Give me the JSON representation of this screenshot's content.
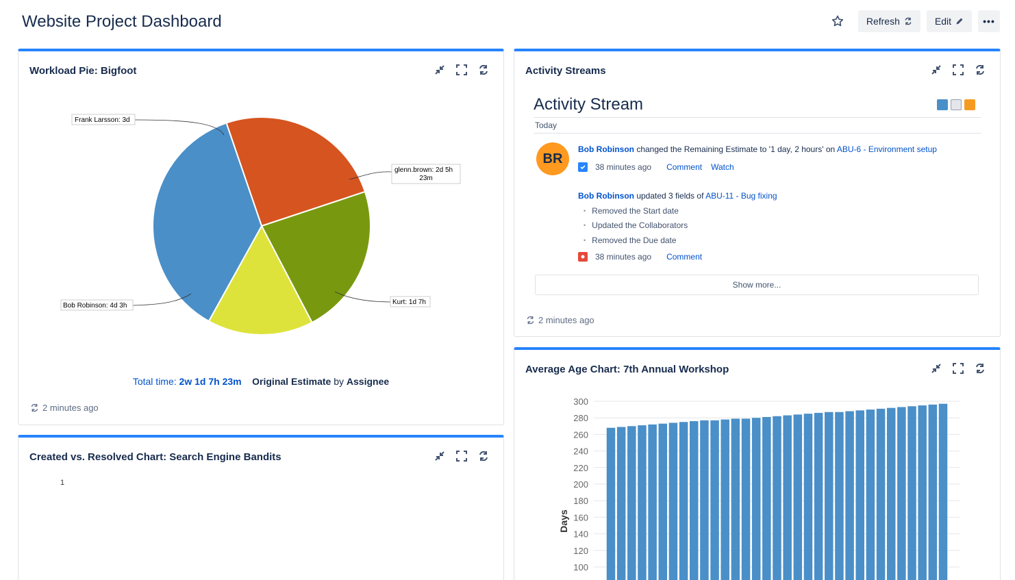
{
  "page": {
    "title": "Website Project Dashboard",
    "refresh_label": "Refresh",
    "edit_label": "Edit",
    "more_label": "•••"
  },
  "workload_pie": {
    "title": "Workload Pie: Bigfoot",
    "caption": {
      "total_prefix": "Total time:",
      "total_value": "2w 1d 7h 23m",
      "estimate": "Original Estimate",
      "by": "by",
      "assignee": "Assignee"
    },
    "labels": {
      "frank": "Frank Larsson: 3d",
      "glenn_line1": "glenn.brown: 2d 5h",
      "glenn_line2": "23m",
      "kurt": "Kurt: 1d 7h",
      "bob": "Bob Robinson: 4d 3h"
    },
    "refreshed": "2 minutes ago"
  },
  "activity_streams": {
    "title": "Activity Streams",
    "heading": "Activity Stream",
    "day": "Today",
    "avatar_initials": "BR",
    "entry1": {
      "user": "Bob Robinson",
      "text": "changed the Remaining Estimate to '1 day, 2 hours' on",
      "issue": "ABU-6 - Environment setup",
      "time": "38 minutes ago",
      "action1": "Comment",
      "action2": "Watch"
    },
    "entry2": {
      "user": "Bob Robinson",
      "text": "updated 3 fields of",
      "issue": "ABU-11 - Bug fixing",
      "changes": [
        "Removed the Start date",
        "Updated the Collaborators",
        "Removed the Due date"
      ],
      "time": "38 minutes ago",
      "action1": "Comment"
    },
    "show_more": "Show more...",
    "refreshed": "2 minutes ago"
  },
  "created_resolved": {
    "title": "Created vs. Resolved Chart: Search Engine Bandits",
    "axis_value": "1"
  },
  "average_age": {
    "title": "Average Age Chart: 7th Annual Workshop"
  },
  "chart_data": [
    {
      "type": "pie",
      "title": "Workload Pie: Bigfoot",
      "unit": "hours",
      "slices": [
        {
          "label": "Frank Larsson: 3d",
          "value": 24,
          "color": "#d6541f"
        },
        {
          "label": "glenn.brown: 2d 5h 23m",
          "value": 21.4,
          "color": "#78990f"
        },
        {
          "label": "Kurt: 1d 7h",
          "value": 15,
          "color": "#dde33a"
        },
        {
          "label": "Bob Robinson: 4d 3h",
          "value": 35,
          "color": "#4a8fc8"
        }
      ]
    },
    {
      "type": "bar",
      "title": "Average Age Chart: 7th Annual Workshop",
      "ylabel": "Days",
      "ylim": [
        100,
        300
      ],
      "yticks": [
        100,
        120,
        140,
        160,
        180,
        200,
        220,
        240,
        260,
        280,
        300
      ],
      "grid": true,
      "color": "#4a8fc8",
      "values": [
        268,
        269,
        270,
        271,
        272,
        273,
        274,
        275,
        276,
        277,
        277,
        278,
        279,
        279,
        280,
        281,
        282,
        283,
        284,
        285,
        286,
        287,
        287,
        288,
        289,
        290,
        291,
        292,
        293,
        294,
        295,
        296,
        297
      ]
    }
  ]
}
